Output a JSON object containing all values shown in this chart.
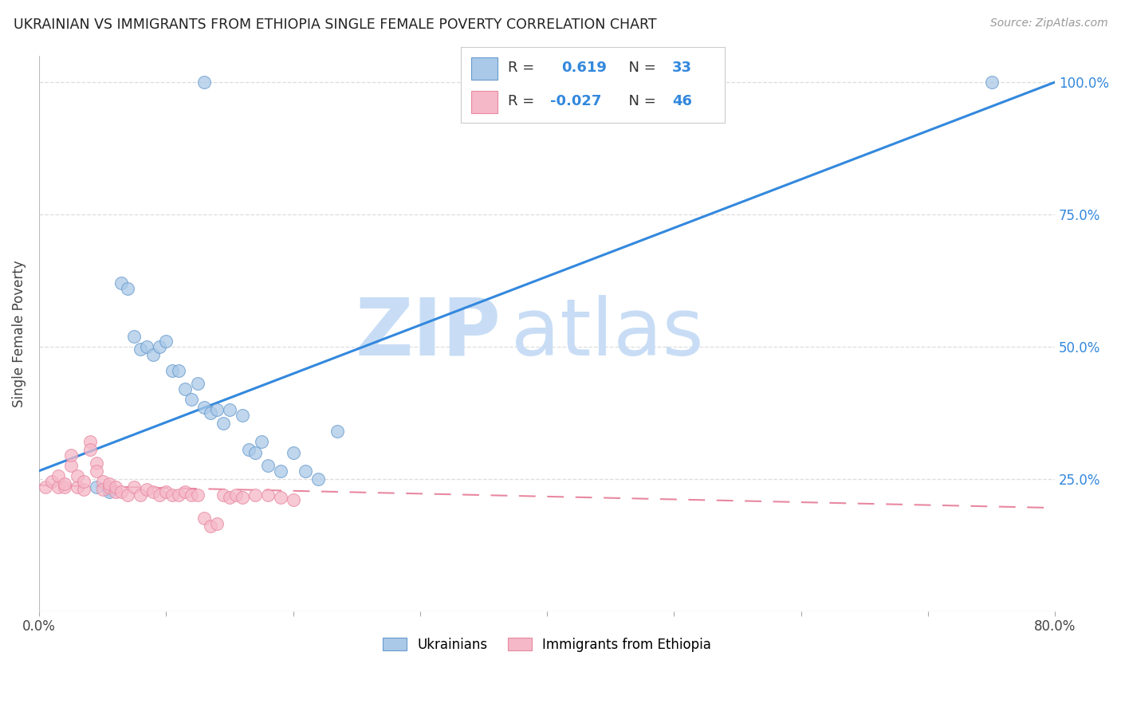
{
  "title": "UKRAINIAN VS IMMIGRANTS FROM ETHIOPIA SINGLE FEMALE POVERTY CORRELATION CHART",
  "source": "Source: ZipAtlas.com",
  "ylabel": "Single Female Poverty",
  "xlim": [
    0.0,
    0.8
  ],
  "ylim": [
    0.0,
    1.05
  ],
  "yticks": [
    0.0,
    0.25,
    0.5,
    0.75,
    1.0
  ],
  "ytick_labels": [
    "",
    "25.0%",
    "50.0%",
    "75.0%",
    "100.0%"
  ],
  "xticks": [
    0.0,
    0.1,
    0.2,
    0.3,
    0.4,
    0.5,
    0.6,
    0.7,
    0.8
  ],
  "xtick_labels": [
    "0.0%",
    "",
    "",
    "",
    "",
    "",
    "",
    "",
    "80.0%"
  ],
  "watermark_zip": "ZIP",
  "watermark_atlas": "atlas",
  "watermark_color": "#c8ddf5",
  "legend_R_blue": "0.619",
  "legend_N_blue": "33",
  "legend_R_pink": "-0.027",
  "legend_N_pink": "46",
  "blue_color": "#aac9e8",
  "pink_color": "#f5b8c8",
  "blue_edge_color": "#6699cc",
  "pink_edge_color": "#e888a0",
  "blue_line_color": "#3388dd",
  "pink_line_color": "#e888a0",
  "background_color": "#ffffff",
  "grid_color": "#dddddd",
  "blue_scatter_x": [
    0.045,
    0.055,
    0.055,
    0.065,
    0.07,
    0.075,
    0.08,
    0.085,
    0.09,
    0.095,
    0.1,
    0.105,
    0.11,
    0.115,
    0.12,
    0.125,
    0.13,
    0.135,
    0.14,
    0.145,
    0.15,
    0.16,
    0.165,
    0.17,
    0.175,
    0.18,
    0.19,
    0.2,
    0.21,
    0.22,
    0.235,
    0.75,
    0.13
  ],
  "blue_scatter_y": [
    0.235,
    0.23,
    0.225,
    0.62,
    0.61,
    0.52,
    0.495,
    0.5,
    0.485,
    0.5,
    0.51,
    0.455,
    0.455,
    0.42,
    0.4,
    0.43,
    0.385,
    0.375,
    0.38,
    0.355,
    0.38,
    0.37,
    0.305,
    0.3,
    0.32,
    0.275,
    0.265,
    0.3,
    0.265,
    0.25,
    0.34,
    1.0,
    1.0
  ],
  "pink_scatter_x": [
    0.005,
    0.01,
    0.015,
    0.015,
    0.02,
    0.02,
    0.025,
    0.025,
    0.03,
    0.03,
    0.035,
    0.035,
    0.04,
    0.04,
    0.045,
    0.045,
    0.05,
    0.05,
    0.055,
    0.055,
    0.06,
    0.06,
    0.065,
    0.07,
    0.075,
    0.08,
    0.085,
    0.09,
    0.095,
    0.1,
    0.105,
    0.11,
    0.115,
    0.12,
    0.125,
    0.13,
    0.135,
    0.14,
    0.145,
    0.15,
    0.155,
    0.16,
    0.17,
    0.18,
    0.19,
    0.2
  ],
  "pink_scatter_y": [
    0.235,
    0.245,
    0.235,
    0.255,
    0.235,
    0.24,
    0.275,
    0.295,
    0.235,
    0.255,
    0.23,
    0.245,
    0.32,
    0.305,
    0.28,
    0.265,
    0.245,
    0.23,
    0.235,
    0.24,
    0.225,
    0.235,
    0.225,
    0.22,
    0.235,
    0.22,
    0.23,
    0.225,
    0.22,
    0.225,
    0.22,
    0.22,
    0.225,
    0.22,
    0.22,
    0.175,
    0.16,
    0.165,
    0.22,
    0.215,
    0.22,
    0.215,
    0.22,
    0.22,
    0.215,
    0.21
  ],
  "blue_line_x": [
    0.0,
    0.8
  ],
  "blue_line_y": [
    0.265,
    1.0
  ],
  "pink_line_x": [
    0.0,
    0.8
  ],
  "pink_line_y": [
    0.238,
    0.195
  ]
}
